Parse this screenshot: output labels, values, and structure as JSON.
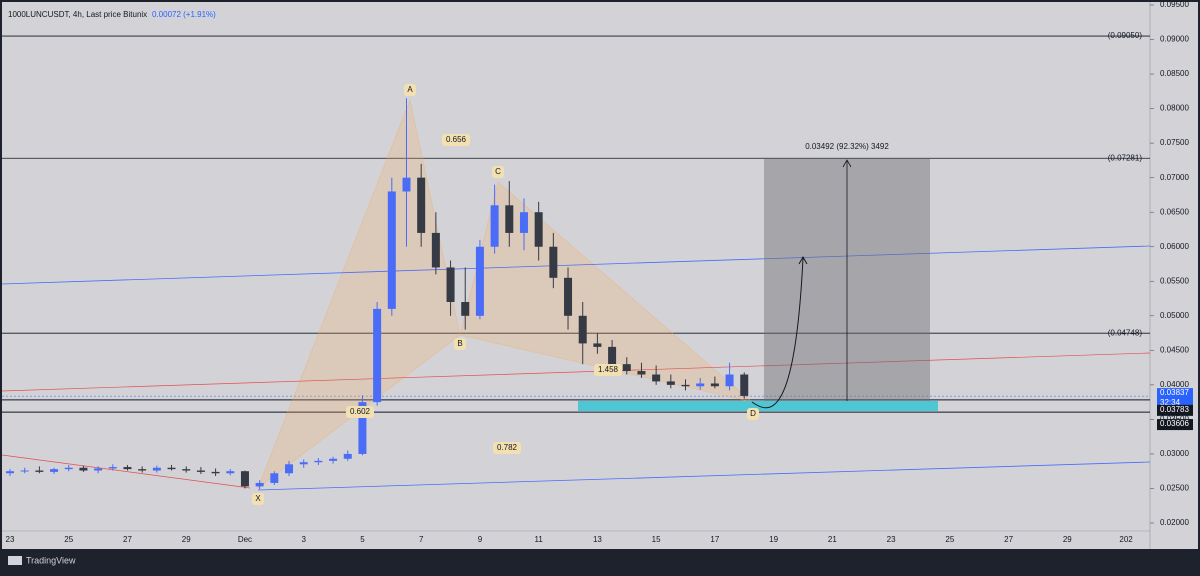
{
  "chart_data": {
    "type": "candlestick",
    "title": "1000LUNCUSDT, 4h, Last price Bitunix",
    "change": "0.00072 (+1.91%)",
    "up_color": "#4a6cf7",
    "down_color": "#363a45",
    "open": [
      0.0272,
      0.0275,
      0.0276,
      0.0274,
      0.0278,
      0.028,
      0.0276,
      0.0279,
      0.0281,
      0.0278,
      0.0276,
      0.028,
      0.0278,
      0.0276,
      0.0274,
      0.0272,
      0.0275,
      0.0253,
      0.0258,
      0.0272,
      0.0285,
      0.0288,
      0.029,
      0.0293,
      0.03,
      0.0375,
      0.051,
      0.068,
      0.07,
      0.062,
      0.057,
      0.052,
      0.05,
      0.06,
      0.066,
      0.062,
      0.065,
      0.06,
      0.0555,
      0.05,
      0.046,
      0.0455,
      0.043,
      0.042,
      0.0415,
      0.0405,
      0.04,
      0.0398,
      0.0402,
      0.0398,
      0.0415
    ],
    "high": [
      0.0278,
      0.028,
      0.0282,
      0.028,
      0.0284,
      0.0283,
      0.0282,
      0.0285,
      0.0284,
      0.0282,
      0.0283,
      0.0284,
      0.0282,
      0.0281,
      0.0279,
      0.0278,
      0.0276,
      0.0262,
      0.0275,
      0.029,
      0.0292,
      0.0294,
      0.0296,
      0.0305,
      0.0385,
      0.052,
      0.07,
      0.0815,
      0.072,
      0.065,
      0.058,
      0.057,
      0.061,
      0.069,
      0.0695,
      0.067,
      0.0665,
      0.062,
      0.057,
      0.052,
      0.0475,
      0.0465,
      0.044,
      0.0432,
      0.0428,
      0.0415,
      0.0408,
      0.041,
      0.0412,
      0.0432,
      0.0418
    ],
    "low": [
      0.0268,
      0.0272,
      0.0272,
      0.0271,
      0.0275,
      0.0274,
      0.0272,
      0.0276,
      0.0276,
      0.0273,
      0.0273,
      0.0276,
      0.0273,
      0.0271,
      0.0268,
      0.0269,
      0.025,
      0.0249,
      0.0255,
      0.0268,
      0.028,
      0.0284,
      0.0286,
      0.029,
      0.0298,
      0.037,
      0.05,
      0.06,
      0.06,
      0.056,
      0.05,
      0.048,
      0.0495,
      0.059,
      0.06,
      0.0595,
      0.058,
      0.054,
      0.048,
      0.043,
      0.0445,
      0.0425,
      0.0415,
      0.041,
      0.04,
      0.0395,
      0.0392,
      0.0393,
      0.0395,
      0.0392,
      0.038
    ],
    "close": [
      0.0275,
      0.0276,
      0.0274,
      0.0278,
      0.028,
      0.0276,
      0.0279,
      0.0281,
      0.0278,
      0.0276,
      0.028,
      0.0278,
      0.0276,
      0.0274,
      0.0272,
      0.0275,
      0.0253,
      0.0258,
      0.0272,
      0.0285,
      0.0288,
      0.029,
      0.0293,
      0.03,
      0.0375,
      0.051,
      0.068,
      0.07,
      0.062,
      0.057,
      0.052,
      0.05,
      0.06,
      0.066,
      0.062,
      0.065,
      0.06,
      0.0555,
      0.05,
      0.046,
      0.0455,
      0.043,
      0.042,
      0.0415,
      0.0405,
      0.04,
      0.0398,
      0.0402,
      0.0398,
      0.0415,
      0.0384
    ],
    "ylim": [
      0.02,
      0.095
    ],
    "yticks": [
      {
        "value": 0.02,
        "label": "0.02000"
      },
      {
        "value": 0.025,
        "label": "0.02500"
      },
      {
        "value": 0.03,
        "label": "0.03000"
      },
      {
        "value": 0.035,
        "label": "0.03500"
      },
      {
        "value": 0.04,
        "label": "0.04000"
      },
      {
        "value": 0.045,
        "label": "0.04500"
      },
      {
        "value": 0.05,
        "label": "0.05000"
      },
      {
        "value": 0.055,
        "label": "0.05500"
      },
      {
        "value": 0.06,
        "label": "0.06000"
      },
      {
        "value": 0.065,
        "label": "0.06500"
      },
      {
        "value": 0.07,
        "label": "0.07000"
      },
      {
        "value": 0.075,
        "label": "0.07500"
      },
      {
        "value": 0.08,
        "label": "0.08000"
      },
      {
        "value": 0.085,
        "label": "0.08500"
      },
      {
        "value": 0.09,
        "label": "0.09000"
      },
      {
        "value": 0.095,
        "label": "0.09500"
      }
    ],
    "x_tick_labels": [
      "23",
      "25",
      "27",
      "29",
      "Dec",
      "3",
      "5",
      "7",
      "9",
      "11",
      "13",
      "15",
      "17",
      "19",
      "21",
      "23",
      "25",
      "27",
      "29",
      "202"
    ],
    "levels": [
      {
        "value": 0.0905,
        "label": "(0.09050)"
      },
      {
        "value": 0.07281,
        "label": "(0.07281)"
      },
      {
        "value": 0.04748,
        "label": "(0.04748)"
      }
    ],
    "price_tags": [
      0.03837,
      0.03783,
      0.03606
    ],
    "countdown": "32:34",
    "points": [
      "X",
      "A",
      "B",
      "C",
      "D"
    ],
    "ratios": [
      "0.656",
      "1.458",
      "0.602",
      "0.782"
    ],
    "measure": "0.03492 (92.32%) 3492",
    "brand": "TradingView"
  }
}
